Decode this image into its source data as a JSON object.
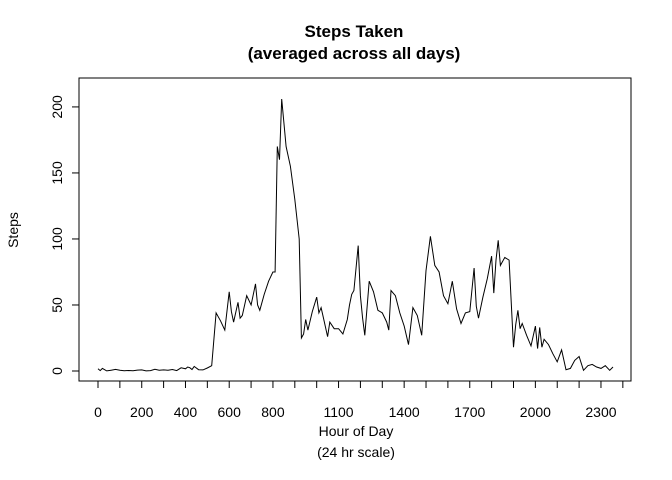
{
  "chart_data": {
    "type": "line",
    "title": "Steps Taken",
    "subtitle": "(averaged across all days)",
    "xlabel": "Hour of Day",
    "xlabel_sub": "(24 hr scale)",
    "ylabel": "Steps",
    "xlim": [
      0,
      2355
    ],
    "ylim": [
      0,
      206
    ],
    "x_ticks": [
      0,
      100,
      200,
      300,
      400,
      500,
      600,
      700,
      800,
      900,
      1000,
      1100,
      1200,
      1300,
      1400,
      1500,
      1600,
      1700,
      1800,
      1900,
      2000,
      2100,
      2200,
      2300,
      2400
    ],
    "x_tick_labels": [
      "0",
      "200",
      "400",
      "600",
      "800",
      "1100",
      "1400",
      "1700",
      "2000",
      "2300"
    ],
    "x_tick_label_values": [
      0,
      200,
      400,
      600,
      800,
      1100,
      1400,
      1700,
      2000,
      2300
    ],
    "y_ticks": [
      0,
      50,
      100,
      150,
      200
    ],
    "y_tick_labels": [
      "0",
      "50",
      "100",
      "150",
      "200"
    ],
    "grid": false,
    "line_color": "#000000",
    "x": [
      0,
      10,
      20,
      40,
      60,
      80,
      100,
      120,
      140,
      160,
      180,
      200,
      220,
      240,
      260,
      280,
      300,
      320,
      340,
      360,
      380,
      400,
      410,
      420,
      430,
      440,
      460,
      480,
      500,
      520,
      540,
      560,
      580,
      600,
      610,
      620,
      640,
      650,
      660,
      680,
      700,
      720,
      730,
      740,
      760,
      780,
      800,
      810,
      820,
      830,
      840,
      860,
      880,
      900,
      920,
      930,
      940,
      950,
      960,
      980,
      1000,
      1010,
      1020,
      1030,
      1050,
      1060,
      1080,
      1100,
      1120,
      1140,
      1150,
      1160,
      1170,
      1190,
      1200,
      1210,
      1220,
      1240,
      1260,
      1280,
      1300,
      1320,
      1330,
      1340,
      1360,
      1380,
      1400,
      1420,
      1440,
      1460,
      1480,
      1500,
      1520,
      1540,
      1560,
      1580,
      1600,
      1620,
      1640,
      1660,
      1680,
      1700,
      1720,
      1730,
      1740,
      1760,
      1780,
      1800,
      1810,
      1820,
      1830,
      1840,
      1860,
      1880,
      1900,
      1910,
      1920,
      1930,
      1940,
      1960,
      1980,
      2000,
      2010,
      2020,
      2030,
      2040,
      2060,
      2080,
      2100,
      2120,
      2140,
      2160,
      2180,
      2200,
      2220,
      2240,
      2260,
      2280,
      2300,
      2320,
      2340,
      2355
    ],
    "y": [
      1.7,
      0.3,
      2,
      0.1,
      0.6,
      1.2,
      0.5,
      0.2,
      0.4,
      0.2,
      0.7,
      0.8,
      0.1,
      0.3,
      1.3,
      0.6,
      0.8,
      0.5,
      1.1,
      0.3,
      2.4,
      1.7,
      3,
      2.5,
      1.1,
      3.5,
      1,
      0.8,
      2.3,
      4,
      44,
      38,
      31,
      60,
      45,
      37,
      52,
      40,
      42,
      57,
      50,
      66,
      50,
      46,
      58,
      68,
      75,
      75,
      170,
      160,
      206,
      170,
      155,
      130,
      100,
      25,
      28,
      39,
      31,
      45,
      56,
      44,
      48,
      41,
      26,
      37,
      32,
      32,
      28,
      39,
      50,
      58,
      61,
      95,
      57,
      40,
      27,
      68,
      60,
      46,
      44,
      37,
      31,
      61,
      57,
      44,
      34,
      20,
      48,
      42,
      27,
      76,
      102,
      80,
      75,
      57,
      51,
      68,
      47,
      36,
      44,
      45,
      78,
      49,
      40,
      56,
      70,
      87,
      59,
      84,
      99,
      80,
      86,
      84,
      18,
      35,
      46,
      32,
      36,
      27,
      19,
      34,
      17,
      33,
      18,
      24,
      20,
      13,
      7,
      16,
      1,
      2,
      8,
      11,
      0.5,
      4,
      5,
      3,
      2,
      4,
      0.5,
      3
    ]
  }
}
